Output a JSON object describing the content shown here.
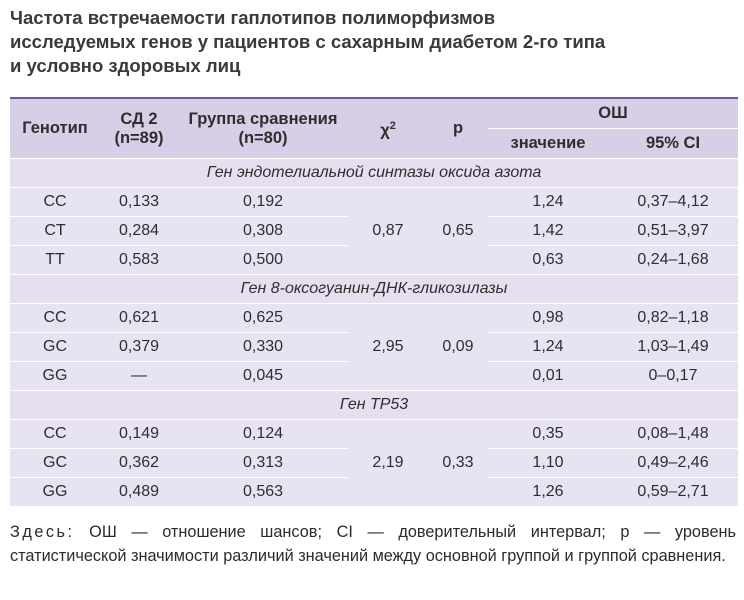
{
  "title": {
    "lines": [
      "Частота встречаемости гаплотипов полиморфизмов",
      "исследуемых генов у пациентов с сахарным диабетом 2-го типа",
      "и условно здоровых лиц"
    ]
  },
  "table": {
    "headers": {
      "genotype": "Генотип",
      "sd2": "СД 2",
      "sd2_n": "(n=89)",
      "comparison": "Группа сравнения",
      "comparison_n": "(n=80)",
      "chi": "χ",
      "chi_sup": "2",
      "p": "p",
      "or": "ОШ",
      "or_value": "значение",
      "or_ci": "95% CI"
    },
    "groups": [
      {
        "gene": "Ген эндотелиальной синтазы оксида азота",
        "chi": "0,87",
        "p": "0,65",
        "rows": [
          {
            "genotype": "CC",
            "sd2": "0,133",
            "comp": "0,192",
            "or": "1,24",
            "ci": "0,37–4,12"
          },
          {
            "genotype": "CT",
            "sd2": "0,284",
            "comp": "0,308",
            "or": "1,42",
            "ci": "0,51–3,97"
          },
          {
            "genotype": "TT",
            "sd2": "0,583",
            "comp": "0,500",
            "or": "0,63",
            "ci": "0,24–1,68"
          }
        ]
      },
      {
        "gene": "Ген 8-оксогуанин-ДНК-гликозилазы",
        "chi": "2,95",
        "p": "0,09",
        "rows": [
          {
            "genotype": "CC",
            "sd2": "0,621",
            "comp": "0,625",
            "or": "0,98",
            "ci": "0,82–1,18"
          },
          {
            "genotype": "GC",
            "sd2": "0,379",
            "comp": "0,330",
            "or": "1,24",
            "ci": "1,03–1,49"
          },
          {
            "genotype": "GG",
            "sd2": "—",
            "comp": "0,045",
            "or": "0,01",
            "ci": "0–0,17"
          }
        ]
      },
      {
        "gene": "Ген TP53",
        "chi": "2,19",
        "p": "0,33",
        "rows": [
          {
            "genotype": "CC",
            "sd2": "0,149",
            "comp": "0,124",
            "or": "0,35",
            "ci": "0,08–1,48"
          },
          {
            "genotype": "GC",
            "sd2": "0,362",
            "comp": "0,313",
            "or": "1,10",
            "ci": "0,49–2,46"
          },
          {
            "genotype": "GG",
            "sd2": "0,489",
            "comp": "0,563",
            "or": "1,26",
            "ci": "0,59–2,71"
          }
        ]
      }
    ]
  },
  "note": {
    "lead": "Здесь:",
    "text": " ОШ — отношение шансов; CI — доверительный интервал; p — уровень статистической значимости различий значений между основной группой и группой сравнения."
  }
}
